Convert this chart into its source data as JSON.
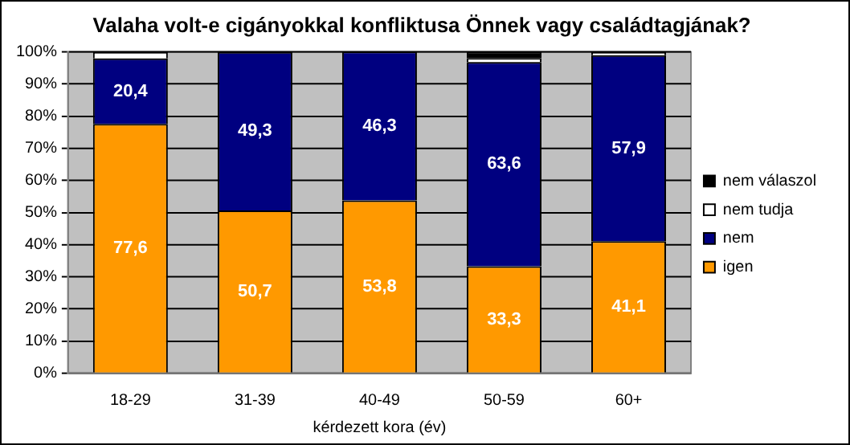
{
  "chart_data": {
    "type": "bar",
    "title": "Valaha volt-e cigányokkal konfliktusa Önnek vagy családtagjának?",
    "xlabel": "kérdezett kora (év)",
    "categories": [
      "18-29",
      "31-39",
      "40-49",
      "50-59",
      "60+"
    ],
    "stacked": true,
    "series": [
      {
        "name": "igen",
        "color": "#ff9900",
        "values": [
          77.6,
          50.7,
          53.8,
          33.3,
          41.1
        ],
        "value_labels": [
          "77,6",
          "50,7",
          "53,8",
          "33,3",
          "41,1"
        ]
      },
      {
        "name": "nem",
        "color": "#000080",
        "values": [
          20.4,
          49.3,
          46.3,
          63.6,
          57.9
        ],
        "value_labels": [
          "20,4",
          "49,3",
          "46,3",
          "63,6",
          "57,9"
        ]
      },
      {
        "name": "nem tudja",
        "color": "#ffffff",
        "values": [
          2.0,
          0,
          0,
          1.2,
          1.0
        ]
      },
      {
        "name": "nem válaszol",
        "color": "#000000",
        "values": [
          0,
          0,
          0,
          1.9,
          0
        ]
      }
    ],
    "ylim": [
      0,
      100
    ],
    "yticks": [
      {
        "value": 0,
        "label": "0%"
      },
      {
        "value": 10,
        "label": "10%"
      },
      {
        "value": 20,
        "label": "20%"
      },
      {
        "value": 30,
        "label": "30%"
      },
      {
        "value": 40,
        "label": "40%"
      },
      {
        "value": 50,
        "label": "50%"
      },
      {
        "value": 60,
        "label": "60%"
      },
      {
        "value": 70,
        "label": "70%"
      },
      {
        "value": 80,
        "label": "80%"
      },
      {
        "value": 90,
        "label": "90%"
      },
      {
        "value": 100,
        "label": "100%"
      }
    ],
    "grid": "y",
    "legend": "right"
  }
}
